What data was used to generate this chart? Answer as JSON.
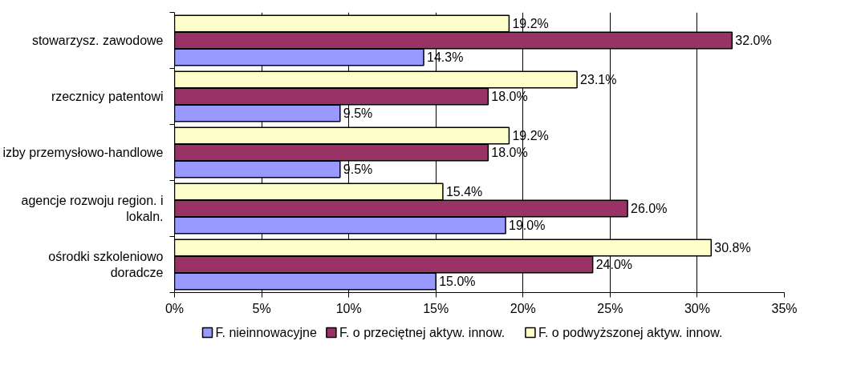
{
  "chart_data": {
    "type": "bar",
    "orientation": "horizontal",
    "categories": [
      "stowarzysz. zawodowe",
      "rzecznicy patentowi",
      "izby przemysłowo-handlowe",
      "agencje rozwoju region. i lokaln.",
      "ośrodki szkoleniowo doradcze"
    ],
    "series": [
      {
        "name": "F. nieinnowacyjne",
        "color": "#9999ff",
        "values": [
          14.3,
          9.5,
          9.5,
          19.0,
          15.0
        ],
        "value_labels": [
          "14.3%",
          "9.5%",
          "9.5%",
          "19.0%",
          "15.0%"
        ]
      },
      {
        "name": "F. o przeciętnej aktyw. innow.",
        "color": "#993366",
        "values": [
          32.0,
          18.0,
          18.0,
          26.0,
          24.0
        ],
        "value_labels": [
          "32.0%",
          "18.0%",
          "18.0%",
          "26.0%",
          "24.0%"
        ]
      },
      {
        "name": "F. o podwyższonej aktyw. innow.",
        "color": "#ffffcc",
        "values": [
          19.2,
          23.1,
          19.2,
          15.4,
          30.8
        ],
        "value_labels": [
          "19.2%",
          "23.1%",
          "19.2%",
          "15.4%",
          "30.8%"
        ]
      }
    ],
    "xlim": [
      0,
      35
    ],
    "xticks": [
      {
        "value": 0,
        "label": "0%"
      },
      {
        "value": 5,
        "label": "5%"
      },
      {
        "value": 10,
        "label": "10%"
      },
      {
        "value": 15,
        "label": "15%"
      },
      {
        "value": 20,
        "label": "20%"
      },
      {
        "value": 25,
        "label": "25%"
      },
      {
        "value": 30,
        "label": "30%"
      },
      {
        "value": 35,
        "label": "35%"
      }
    ],
    "grid": "x",
    "legend": "bottom"
  }
}
